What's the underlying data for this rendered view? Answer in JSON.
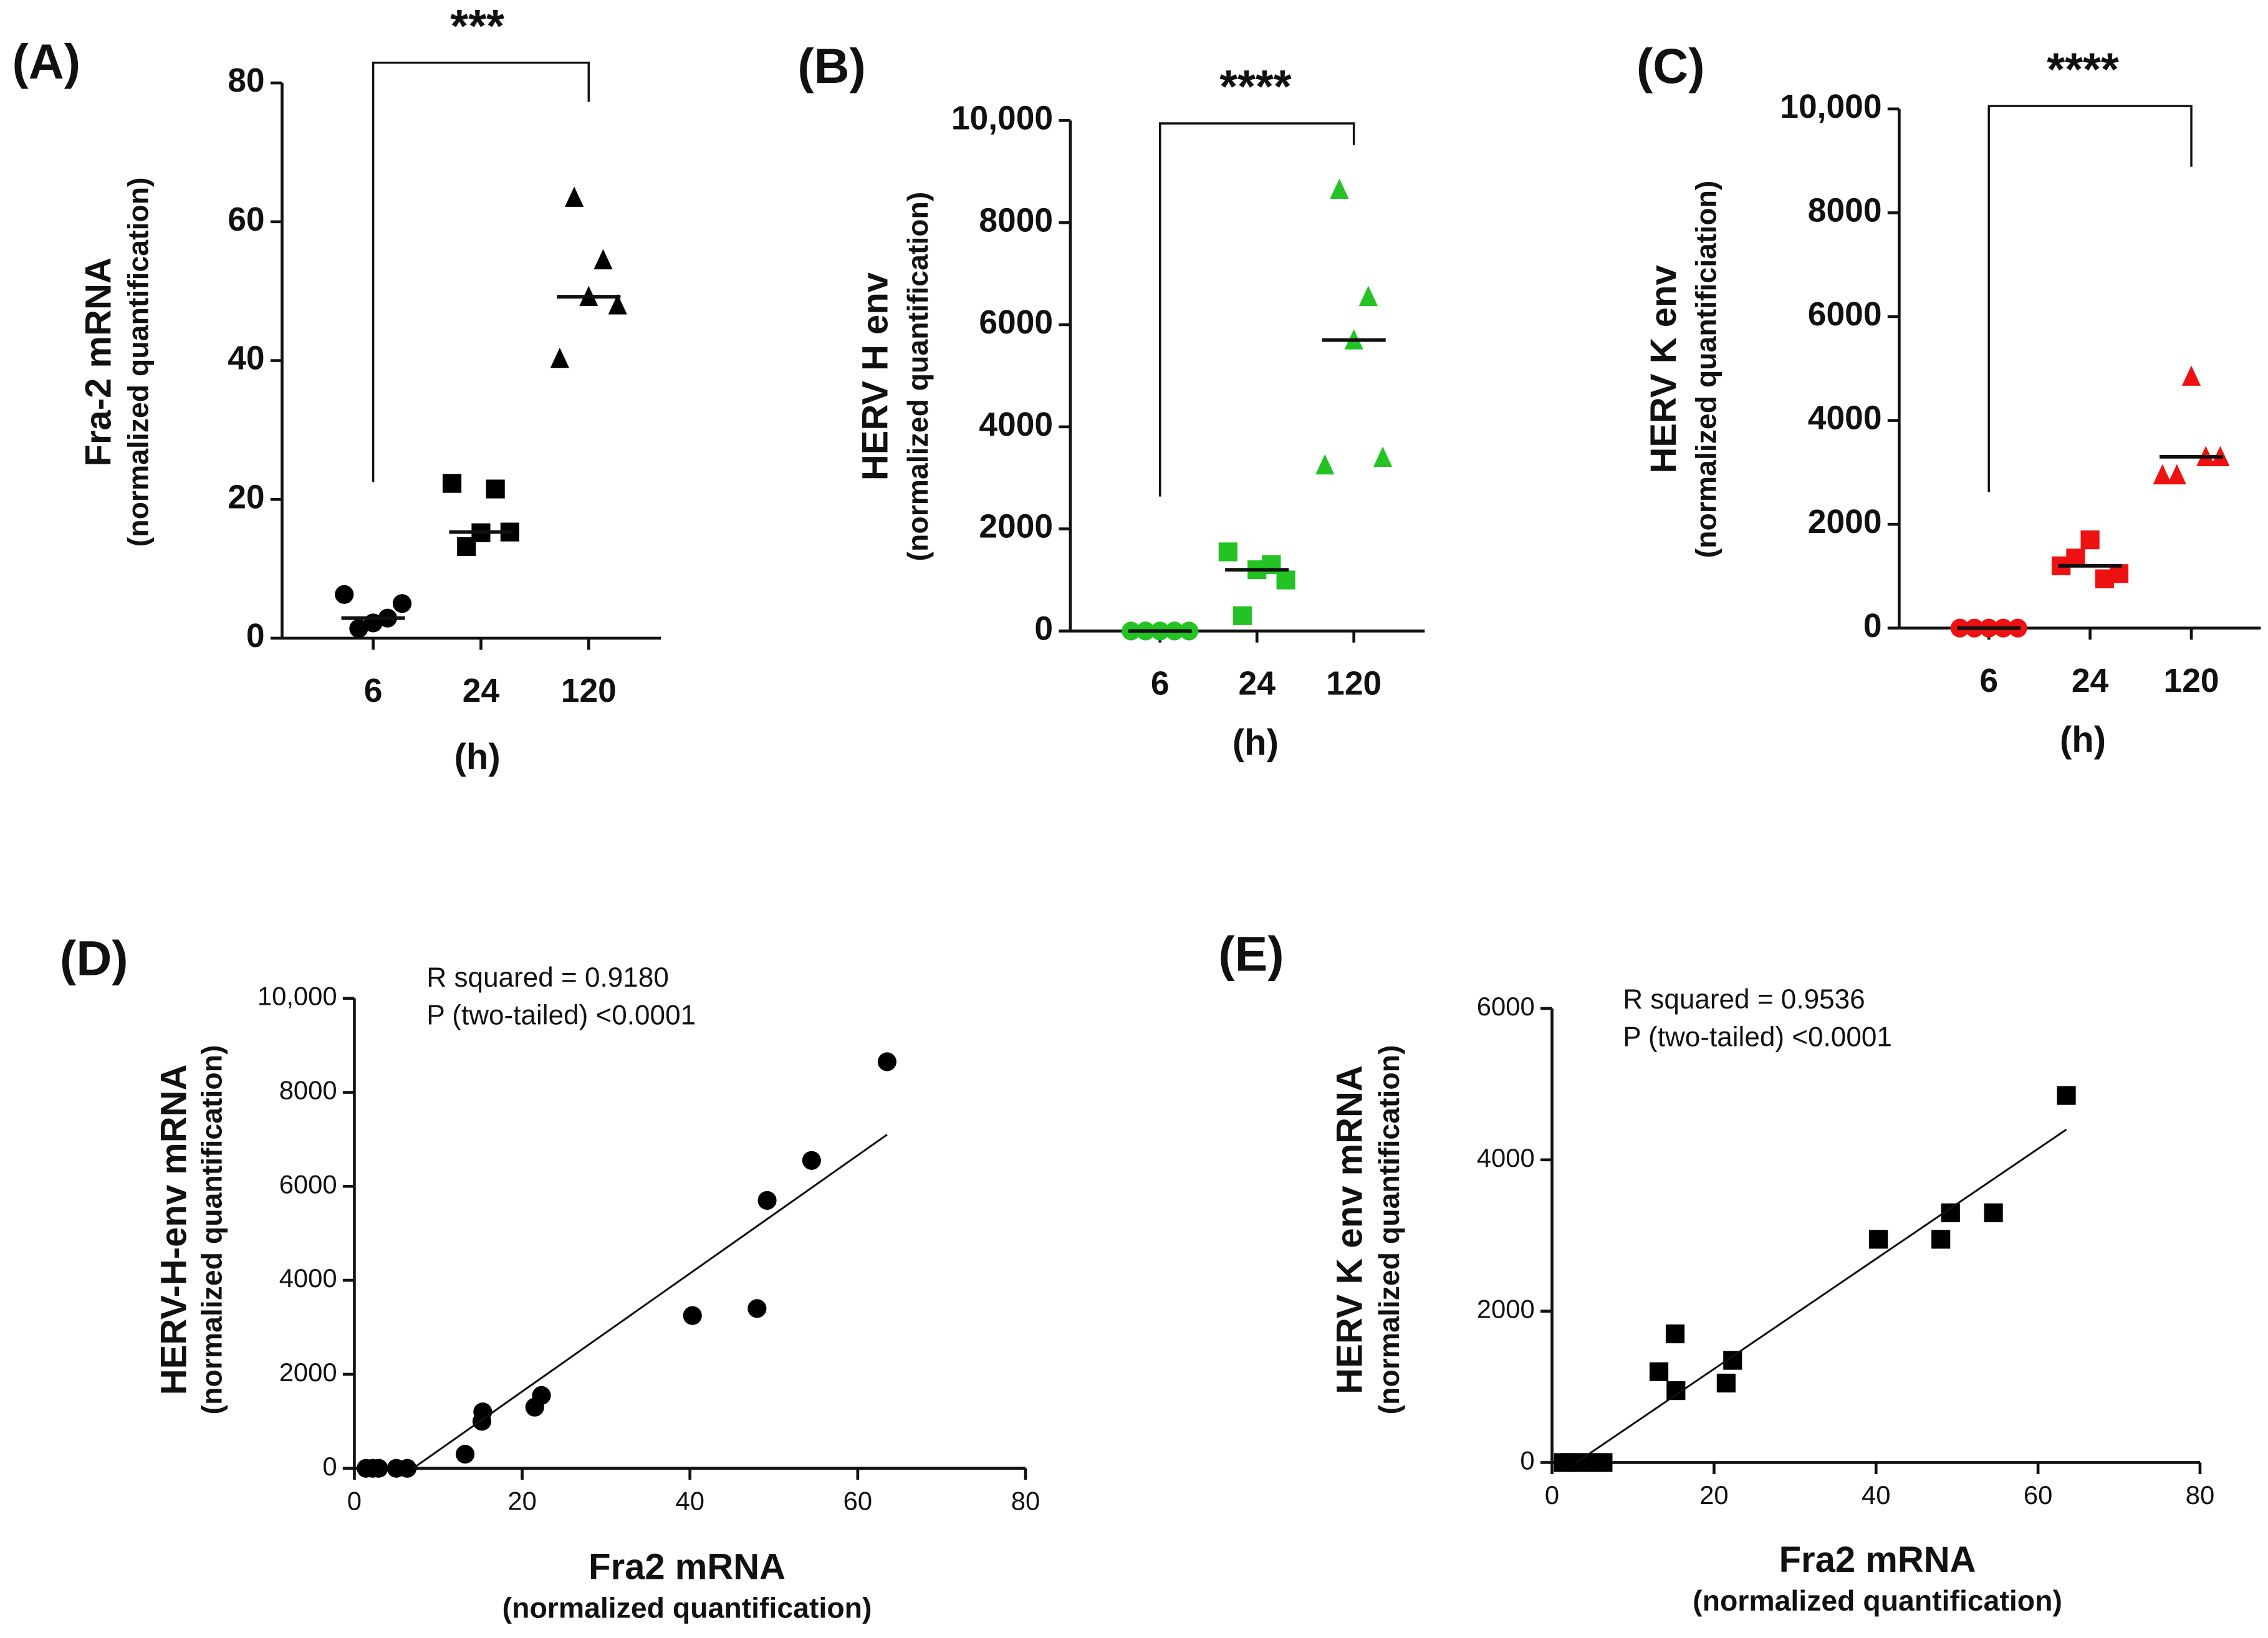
{
  "chart_data": [
    {
      "type": "dot",
      "panel_label": "(A)",
      "y_label": "Fra-2 mRNA",
      "y_sublabel": "(normalized quantification)",
      "x_label": "(h)",
      "categories": [
        "6",
        "24",
        "120"
      ],
      "markers": [
        "circle",
        "square",
        "triangle"
      ],
      "color": "#000000",
      "values": [
        [
          6.3,
          1.4,
          2.2,
          2.9,
          5.0
        ],
        [
          22.3,
          13.2,
          15.2,
          21.5,
          15.3
        ],
        [
          40.3,
          63.5,
          49.2,
          54.5,
          48.0
        ]
      ],
      "medians": [
        2.9,
        15.3,
        49.2
      ],
      "ylim": [
        0,
        80
      ],
      "yticks": [
        0,
        20,
        40,
        60,
        80
      ],
      "annotation": "***"
    },
    {
      "type": "dot",
      "panel_label": "(B)",
      "y_label": "HERV H env",
      "y_sublabel": "(normalized quantification)",
      "x_label": "(h)",
      "categories": [
        "6",
        "24",
        "120"
      ],
      "markers": [
        "circle",
        "square",
        "triangle"
      ],
      "color": "#22c322",
      "values": [
        [
          0,
          0,
          0,
          0,
          0
        ],
        [
          1550,
          300,
          1200,
          1300,
          1000
        ],
        [
          3250,
          8650,
          5700,
          6550,
          3400
        ]
      ],
      "medians": [
        0,
        1200,
        5700
      ],
      "ylim": [
        0,
        10000
      ],
      "yticks": [
        0,
        2000,
        4000,
        6000,
        8000,
        {
          "value": 10000,
          "label": "10,000"
        }
      ],
      "annotation": "****"
    },
    {
      "type": "dot",
      "panel_label": "(C)",
      "y_label": "HERV K env",
      "y_sublabel": "(normalized quantificiation)",
      "x_label": "(h)",
      "categories": [
        "6",
        "24",
        "120"
      ],
      "markers": [
        "circle",
        "square",
        "triangle"
      ],
      "color": "#ee1111",
      "values": [
        [
          0,
          0,
          0,
          0,
          0
        ],
        [
          1200,
          1350,
          1700,
          950,
          1050
        ],
        [
          2950,
          2950,
          4850,
          3300,
          3300
        ]
      ],
      "medians": [
        0,
        1200,
        3300
      ],
      "ylim": [
        0,
        10000
      ],
      "yticks": [
        0,
        2000,
        4000,
        6000,
        8000,
        {
          "value": 10000,
          "label": "10,000"
        }
      ],
      "annotation": "****"
    },
    {
      "type": "scatter",
      "panel_label": "(D)",
      "y_label": "HERV-H-env mRNA",
      "y_sublabel": "(normalized quantification)",
      "x_label": "Fra2 mRNA",
      "x_sublabel": "(normalized quantification)",
      "marker": "circle",
      "color": "#000000",
      "x": [
        1.4,
        2.2,
        2.9,
        5.0,
        6.3,
        13.2,
        15.2,
        15.3,
        21.5,
        22.3,
        40.3,
        48.0,
        49.2,
        54.5,
        63.5
      ],
      "y": [
        0,
        0,
        0,
        0,
        0,
        300,
        1000,
        1200,
        1300,
        1550,
        3250,
        3400,
        5700,
        6550,
        8650
      ],
      "fit_line": {
        "x": [
          7,
          63.5
        ],
        "y": [
          0,
          7100
        ]
      },
      "xlim": [
        0,
        80
      ],
      "xticks": [
        0,
        20,
        40,
        60,
        80
      ],
      "ylim": [
        0,
        10000
      ],
      "yticks": [
        0,
        2000,
        4000,
        6000,
        8000,
        {
          "value": 10000,
          "label": "10,000"
        }
      ],
      "annotations": [
        "R squared = 0.9180",
        "P (two-tailed) <0.0001"
      ]
    },
    {
      "type": "scatter",
      "panel_label": "(E)",
      "y_label": "HERV K env mRNA",
      "y_sublabel": "(normalized quantification)",
      "x_label": "Fra2 mRNA",
      "x_sublabel": "(normalized quantification)",
      "marker": "square",
      "color": "#000000",
      "x": [
        1.4,
        2.2,
        2.9,
        5.0,
        6.3,
        13.2,
        15.2,
        15.3,
        21.5,
        22.3,
        40.3,
        48.0,
        49.2,
        54.5,
        63.5
      ],
      "y": [
        0,
        0,
        0,
        0,
        0,
        1200,
        1700,
        950,
        1050,
        1350,
        2950,
        2950,
        3300,
        3300,
        4850
      ],
      "fit_line": {
        "x": [
          3,
          63.5
        ],
        "y": [
          0,
          4400
        ]
      },
      "xlim": [
        0,
        80
      ],
      "xticks": [
        0,
        20,
        40,
        60,
        80
      ],
      "ylim": [
        0,
        6000
      ],
      "yticks": [
        0,
        2000,
        4000,
        6000
      ],
      "annotations": [
        "R squared = 0.9536",
        "P (two-tailed) <0.0001"
      ]
    }
  ]
}
